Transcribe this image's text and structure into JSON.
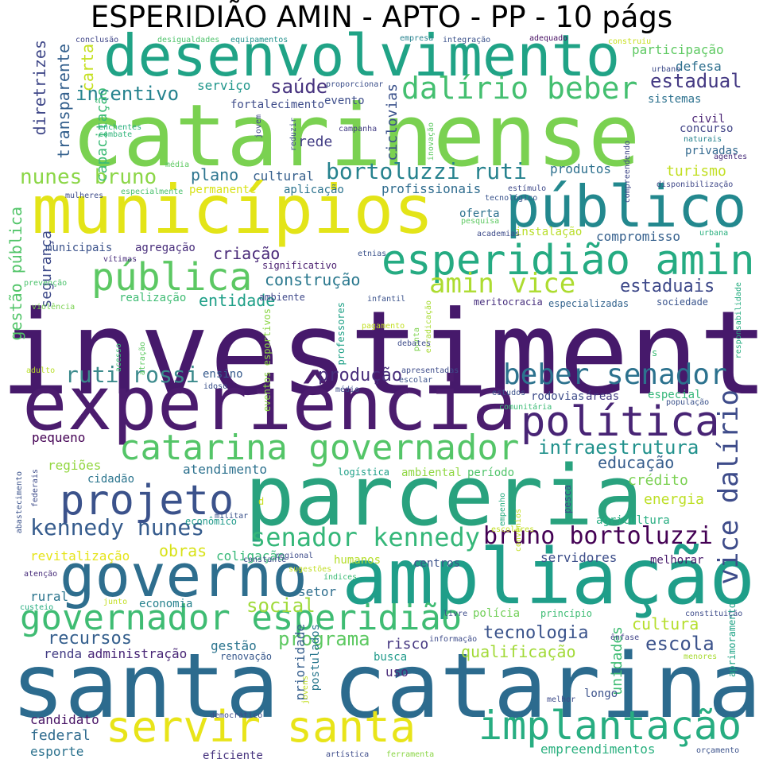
{
  "title": "ESPERIDIÃO AMIN - APTO - PP - 10 págs",
  "palette": [
    "#440154",
    "#3b528b",
    "#21908d",
    "#5dc863",
    "#fde725"
  ],
  "words": [
    {
      "text": "investimento",
      "color": "#46196b"
    },
    {
      "text": "catarinense",
      "color": "#7ad151"
    },
    {
      "text": "santa catarina",
      "color": "#2c6b8e"
    },
    {
      "text": "experiência",
      "color": "#4b1c6e"
    },
    {
      "text": "parceria",
      "color": "#29a27e"
    },
    {
      "text": "ampliação",
      "color": "#1f9e89"
    },
    {
      "text": "municípios",
      "color": "#e3e418"
    },
    {
      "text": "desenvolvimento",
      "color": "#20a386"
    },
    {
      "text": "governo",
      "color": "#2e6e8e"
    },
    {
      "text": "público",
      "color": "#23888e"
    },
    {
      "text": "servir santa",
      "color": "#e8e419"
    },
    {
      "text": "esperidião amin",
      "color": "#25ab82"
    },
    {
      "text": "projeto",
      "color": "#3b528b"
    },
    {
      "text": "pública",
      "color": "#5cc863"
    },
    {
      "text": "implantação",
      "color": "#27ad81"
    },
    {
      "text": "política",
      "color": "#482475"
    },
    {
      "text": "catarina governador",
      "color": "#54c568"
    },
    {
      "text": "governador esperidião",
      "color": "#3fbc73"
    },
    {
      "text": "dalírio beber",
      "color": "#44bf70"
    },
    {
      "text": "vice dalírio",
      "color": "#3e4c8a"
    },
    {
      "text": "beber senador",
      "color": "#2c728e"
    },
    {
      "text": "amin vice",
      "color": "#addc30"
    },
    {
      "text": "senador kennedy",
      "color": "#35b779"
    },
    {
      "text": "bruno bortoluzzi",
      "color": "#440154"
    },
    {
      "text": "kennedy nunes",
      "color": "#365c8d"
    },
    {
      "text": "nunes bruno",
      "color": "#8bd646"
    },
    {
      "text": "bortoluzzi ruti",
      "color": "#26828e"
    },
    {
      "text": "ruti rossi",
      "color": "#3b8a8c"
    },
    {
      "text": "infraestrutura",
      "color": "#21918c"
    },
    {
      "text": "programa",
      "color": "#5ec962"
    },
    {
      "text": "tecnologia",
      "color": "#3a538b"
    },
    {
      "text": "incentivo",
      "color": "#26838f"
    },
    {
      "text": "saúde",
      "color": "#46327e"
    },
    {
      "text": "estadual",
      "color": "#443983"
    },
    {
      "text": "escola",
      "color": "#3b528b"
    },
    {
      "text": "social",
      "color": "#9fda3a"
    },
    {
      "text": "cultura",
      "color": "#b5de2b"
    },
    {
      "text": "educação",
      "color": "#365d8d"
    },
    {
      "text": "estaduais",
      "color": "#3e4989"
    },
    {
      "text": "produção",
      "color": "#472d7b"
    },
    {
      "text": "recursos",
      "color": "#355f8d"
    },
    {
      "text": "construção",
      "color": "#2a788e"
    },
    {
      "text": "entidade",
      "color": "#1fa088"
    },
    {
      "text": "criação",
      "color": "#482878"
    },
    {
      "text": "plano",
      "color": "#2b748e"
    },
    {
      "text": "rede",
      "color": "#433e85"
    },
    {
      "text": "turismo",
      "color": "#c2df23"
    },
    {
      "text": "energia",
      "color": "#bddf26"
    },
    {
      "text": "crédito",
      "color": "#7ad151"
    },
    {
      "text": "obras",
      "color": "#d8e219"
    },
    {
      "text": "qualificação",
      "color": "#a2da37"
    },
    {
      "text": "segurança",
      "color": "#3e4a89"
    },
    {
      "text": "gestão pública",
      "color": "#52c569"
    },
    {
      "text": "diretrizes",
      "color": "#3f4788"
    },
    {
      "text": "transparente",
      "color": "#34608d"
    },
    {
      "text": "carta",
      "color": "#c5e021"
    },
    {
      "text": "capacitação",
      "color": "#3bbb75"
    },
    {
      "text": "participação",
      "color": "#5ec962"
    },
    {
      "text": "defesa",
      "color": "#2e6f8e"
    },
    {
      "text": "sistemas",
      "color": "#2c718e"
    },
    {
      "text": "serviço",
      "color": "#1f968b"
    },
    {
      "text": "evento",
      "color": "#3d4d8a"
    },
    {
      "text": "fortalecimento",
      "color": "#3e4c8a"
    },
    {
      "text": "ciclovias",
      "color": "#3b528b"
    },
    {
      "text": "civil",
      "color": "#482173"
    },
    {
      "text": "concurso",
      "color": "#414487"
    },
    {
      "text": "privadas",
      "color": "#31688e"
    },
    {
      "text": "produtos",
      "color": "#2d708e"
    },
    {
      "text": "profissionais",
      "color": "#2f6c8e"
    },
    {
      "text": "cultural",
      "color": "#355f8d"
    },
    {
      "text": "aplicação",
      "color": "#2c738e"
    },
    {
      "text": "permanente",
      "color": "#d8e219"
    },
    {
      "text": "oferta",
      "color": "#2c718e"
    },
    {
      "text": "compromisso",
      "color": "#35608d"
    },
    {
      "text": "instalação",
      "color": "#b8de29"
    },
    {
      "text": "municipais",
      "color": "#3b528b"
    },
    {
      "text": "agregação",
      "color": "#472c7a"
    },
    {
      "text": "significativo",
      "color": "#481c6e"
    },
    {
      "text": "realização",
      "color": "#3fbc73"
    },
    {
      "text": "ambiente",
      "color": "#3f4889"
    },
    {
      "text": "meritocracia",
      "color": "#472f7d"
    },
    {
      "text": "especializadas",
      "color": "#33638d"
    },
    {
      "text": "sociedade",
      "color": "#3a548c"
    },
    {
      "text": "ensino",
      "color": "#375b8d"
    },
    {
      "text": "rodovias",
      "color": "#3e4c8a"
    },
    {
      "text": "áreas",
      "color": "#443b84"
    },
    {
      "text": "especial",
      "color": "#35b779"
    },
    {
      "text": "pequeno",
      "color": "#440154"
    },
    {
      "text": "regiões",
      "color": "#93d741"
    },
    {
      "text": "logística",
      "color": "#1fa088"
    },
    {
      "text": "ambiental",
      "color": "#90d743"
    },
    {
      "text": "período",
      "color": "#50c46a"
    },
    {
      "text": "atendimento",
      "color": "#2c718e"
    },
    {
      "text": "cidadão",
      "color": "#2b758e"
    },
    {
      "text": "econômico",
      "color": "#1f9a8a"
    },
    {
      "text": "agricultura",
      "color": "#27ad81"
    },
    {
      "text": "revitalização",
      "color": "#e5e419"
    },
    {
      "text": "coligação",
      "color": "#37b878"
    },
    {
      "text": "humanos",
      "color": "#b5de2b"
    },
    {
      "text": "centros",
      "color": "#3b528b"
    },
    {
      "text": "servidores",
      "color": "#3d4e8a"
    },
    {
      "text": "melhorar",
      "color": "#481a6c"
    },
    {
      "text": "setor",
      "color": "#2e6e8e"
    },
    {
      "text": "rural",
      "color": "#2b758e"
    },
    {
      "text": "economia",
      "color": "#26828e"
    },
    {
      "text": "polícia",
      "color": "#70cf57"
    },
    {
      "text": "princípio",
      "color": "#3dbc74"
    },
    {
      "text": "professores",
      "color": "#1fa187"
    },
    {
      "text": "renda",
      "color": "#433d84"
    },
    {
      "text": "administração",
      "color": "#482576"
    },
    {
      "text": "gestão",
      "color": "#2b748e"
    },
    {
      "text": "risco",
      "color": "#453781"
    },
    {
      "text": "busca",
      "color": "#1f9a8a"
    },
    {
      "text": "uso",
      "color": "#482979"
    },
    {
      "text": "unidades",
      "color": "#3fbc73"
    },
    {
      "text": "aprimoramento",
      "color": "#20a386"
    },
    {
      "text": "prioridade",
      "color": "#355e8d"
    },
    {
      "text": "postulados",
      "color": "#2a788e"
    },
    {
      "text": "candidato",
      "color": "#471365"
    },
    {
      "text": "federal",
      "color": "#2f6b8e"
    },
    {
      "text": "esporte",
      "color": "#2c728e"
    },
    {
      "text": "eficiente",
      "color": "#46327e"
    },
    {
      "text": "empreendimentos",
      "color": "#2ab07f"
    },
    {
      "text": "longo",
      "color": "#3b528b"
    },
    {
      "text": "renovação",
      "color": "#38588c"
    },
    {
      "text": "menores",
      "color": "#a8db34"
    },
    {
      "text": "ênfase",
      "color": "#414487"
    },
    {
      "text": "conclusão",
      "color": "#404688"
    },
    {
      "text": "desigualdades",
      "color": "#4ec36b"
    },
    {
      "text": "equipamentos",
      "color": "#21918c"
    },
    {
      "text": "empresa",
      "color": "#26828e"
    },
    {
      "text": "integração",
      "color": "#3b528b"
    },
    {
      "text": "adequado",
      "color": "#471063"
    },
    {
      "text": "construiu",
      "color": "#c8e020"
    },
    {
      "text": "urbano",
      "color": "#3e4c8a"
    },
    {
      "text": "proporcionar",
      "color": "#3c4f8a"
    },
    {
      "text": "enchentes",
      "color": "#2ab07f"
    },
    {
      "text": "combate",
      "color": "#31b57b"
    },
    {
      "text": "jovem",
      "color": "#3f4788"
    },
    {
      "text": "reduzir",
      "color": "#3d4d8a"
    },
    {
      "text": "campanha",
      "color": "#433d84"
    },
    {
      "text": "inovação",
      "color": "#5ec962"
    },
    {
      "text": "compreendendo",
      "color": "#3f4788"
    },
    {
      "text": "naturais",
      "color": "#26828e"
    },
    {
      "text": "agentes",
      "color": "#472c7a"
    },
    {
      "text": "média",
      "color": "#5ec962"
    },
    {
      "text": "mulheres",
      "color": "#3e4c8a"
    },
    {
      "text": "especialmente",
      "color": "#4ac16d"
    },
    {
      "text": "tecnológico",
      "color": "#3a548c"
    },
    {
      "text": "estímulo",
      "color": "#3e4989"
    },
    {
      "text": "disponibilização",
      "color": "#3f4788"
    },
    {
      "text": "pesquisa",
      "color": "#5ec962"
    },
    {
      "text": "academias",
      "color": "#3e4c8a"
    },
    {
      "text": "urbana",
      "color": "#2ab07f"
    },
    {
      "text": "vítimas",
      "color": "#472a7a"
    },
    {
      "text": "etnias",
      "color": "#3b528b"
    },
    {
      "text": "prevenção",
      "color": "#4cc26c"
    },
    {
      "text": "violência",
      "color": "#7ad151"
    },
    {
      "text": "infantil",
      "color": "#3b528b"
    },
    {
      "text": "erradicação",
      "color": "#a8db34"
    },
    {
      "text": "responsabilidade",
      "color": "#27ad81"
    },
    {
      "text": "pagamento",
      "color": "#c2df23"
    },
    {
      "text": "ponta",
      "color": "#7fd34e"
    },
    {
      "text": "debates",
      "color": "#3e4c8a"
    },
    {
      "text": "atração",
      "color": "#5ec962"
    },
    {
      "text": "acesso",
      "color": "#3bbb75"
    },
    {
      "text": "adulto",
      "color": "#b8de29"
    },
    {
      "text": "eventos esportivos",
      "color": "#8bd646"
    },
    {
      "text": "idoso",
      "color": "#3b528b"
    },
    {
      "text": "médio",
      "color": "#3e4c8a"
    },
    {
      "text": "apresentadas",
      "color": "#3e4c8a"
    },
    {
      "text": "escolar",
      "color": "#3b528b"
    },
    {
      "text": "estudos",
      "color": "#3b528b"
    },
    {
      "text": "comunitária",
      "color": "#3bbb75"
    },
    {
      "text": "população",
      "color": "#3b528b"
    },
    {
      "text": "s",
      "color": "#3bbb75"
    },
    {
      "text": "abastecimento",
      "color": "#3b528b"
    },
    {
      "text": "federais",
      "color": "#3e4c8a"
    },
    {
      "text": "militar",
      "color": "#3b528b"
    },
    {
      "text": "d",
      "color": "#c8e020"
    },
    {
      "text": "empenho",
      "color": "#27ad81"
    },
    {
      "text": "convênios",
      "color": "#c2df23"
    },
    {
      "text": "pesca",
      "color": "#3e4c8a"
    },
    {
      "text": "escolares",
      "color": "#c2df23"
    },
    {
      "text": "constante",
      "color": "#3e4c8a"
    },
    {
      "text": "regional",
      "color": "#3e4c8a"
    },
    {
      "text": "sugestões",
      "color": "#c2df23"
    },
    {
      "text": "índices",
      "color": "#3bbb75"
    },
    {
      "text": "atenção",
      "color": "#472c7a"
    },
    {
      "text": "custeio",
      "color": "#27ad81"
    },
    {
      "text": "junto",
      "color": "#c2df23"
    },
    {
      "text": "livre",
      "color": "#3e4c8a"
    },
    {
      "text": "constituição",
      "color": "#3e4c8a"
    },
    {
      "text": "informação",
      "color": "#3e4c8a"
    },
    {
      "text": "jovens",
      "color": "#c2df23"
    },
    {
      "text": "melhor",
      "color": "#3e4c8a"
    },
    {
      "text": "democrático",
      "color": "#3e4c8a"
    },
    {
      "text": "artística",
      "color": "#3e4c8a"
    },
    {
      "text": "ferramenta",
      "color": "#8bd646"
    },
    {
      "text": "orçamento",
      "color": "#3b528b"
    }
  ]
}
